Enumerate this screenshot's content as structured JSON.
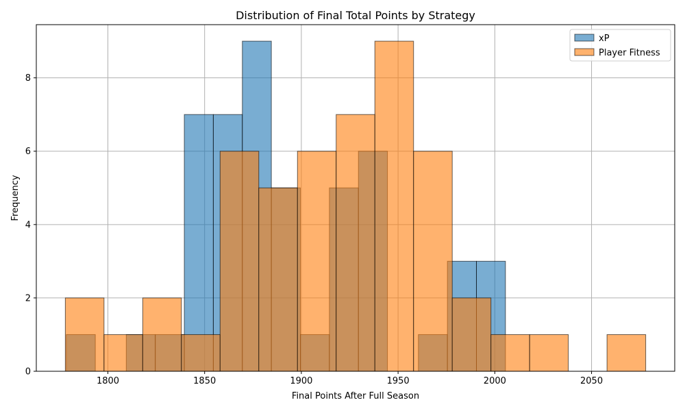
{
  "chart_data": {
    "type": "histogram",
    "title": "Distribution of Final Total Points by Strategy",
    "xlabel": "Final Points After Full Season",
    "ylabel": "Frequency",
    "xlim": [
      1763,
      2093
    ],
    "ylim": [
      0,
      9.45
    ],
    "xticks": [
      1800,
      1850,
      1900,
      1950,
      2000,
      2050
    ],
    "yticks": [
      0,
      2,
      4,
      6,
      8
    ],
    "grid": true,
    "legend_position": "top-right",
    "series": [
      {
        "name": "xP",
        "color": "#1f77b4",
        "opacity": 0.6,
        "bins": [
          {
            "x0": 1778.5,
            "x1": 1793.5,
            "count": 1
          },
          {
            "x0": 1809.5,
            "x1": 1824.5,
            "count": 1
          },
          {
            "x0": 1824.5,
            "x1": 1839.5,
            "count": 1
          },
          {
            "x0": 1839.5,
            "x1": 1854.5,
            "count": 7
          },
          {
            "x0": 1854.5,
            "x1": 1869.5,
            "count": 7
          },
          {
            "x0": 1869.5,
            "x1": 1884.5,
            "count": 9
          },
          {
            "x0": 1884.5,
            "x1": 1899.5,
            "count": 5
          },
          {
            "x0": 1899.5,
            "x1": 1914.5,
            "count": 1
          },
          {
            "x0": 1914.5,
            "x1": 1929.5,
            "count": 5
          },
          {
            "x0": 1929.5,
            "x1": 1944.5,
            "count": 6
          },
          {
            "x0": 1960.5,
            "x1": 1975.5,
            "count": 1
          },
          {
            "x0": 1975.5,
            "x1": 1990.5,
            "count": 3
          },
          {
            "x0": 1990.5,
            "x1": 2005.5,
            "count": 3
          }
        ]
      },
      {
        "name": "Player Fitness",
        "color": "#ff7f0e",
        "opacity": 0.6,
        "bins": [
          {
            "x0": 1778.0,
            "x1": 1798.0,
            "count": 2
          },
          {
            "x0": 1798.0,
            "x1": 1818.0,
            "count": 1
          },
          {
            "x0": 1818.0,
            "x1": 1838.0,
            "count": 2
          },
          {
            "x0": 1838.0,
            "x1": 1858.0,
            "count": 1
          },
          {
            "x0": 1858.0,
            "x1": 1878.0,
            "count": 6
          },
          {
            "x0": 1878.0,
            "x1": 1898.0,
            "count": 5
          },
          {
            "x0": 1898.0,
            "x1": 1918.0,
            "count": 6
          },
          {
            "x0": 1918.0,
            "x1": 1938.0,
            "count": 7
          },
          {
            "x0": 1938.0,
            "x1": 1958.0,
            "count": 9
          },
          {
            "x0": 1958.0,
            "x1": 1978.0,
            "count": 6
          },
          {
            "x0": 1978.0,
            "x1": 1998.0,
            "count": 2
          },
          {
            "x0": 1998.0,
            "x1": 2018.0,
            "count": 1
          },
          {
            "x0": 2018.0,
            "x1": 2038.0,
            "count": 1
          },
          {
            "x0": 2038.0,
            "x1": 2058.0,
            "count": 0
          },
          {
            "x0": 2058.0,
            "x1": 2078.0,
            "count": 1
          }
        ]
      }
    ]
  }
}
